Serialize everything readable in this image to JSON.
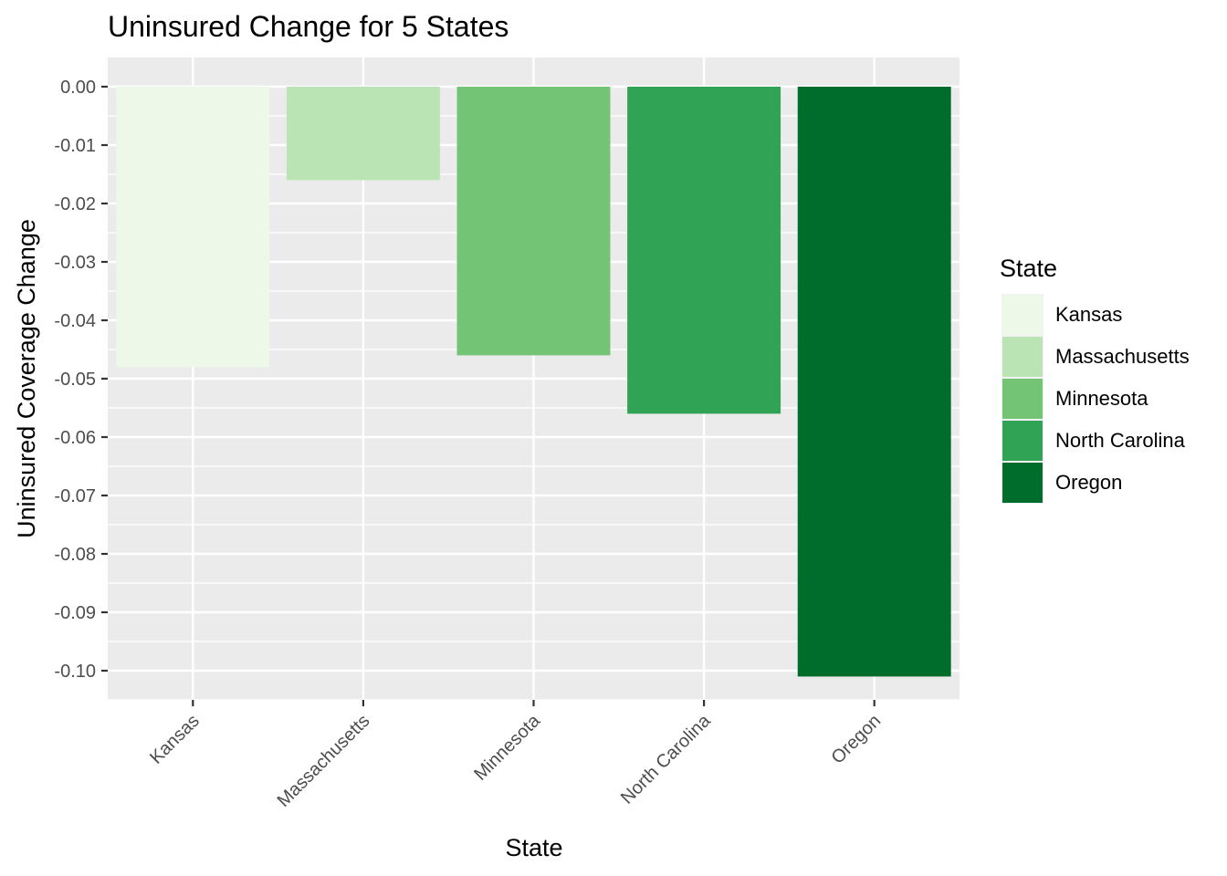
{
  "chart_data": {
    "type": "bar",
    "title": "Uninsured Change for 5 States",
    "xlabel": "State",
    "ylabel": "Uninsured Coverage Change",
    "categories": [
      "Kansas",
      "Massachusetts",
      "Minnesota",
      "North Carolina",
      "Oregon"
    ],
    "values": [
      -0.048,
      -0.016,
      -0.046,
      -0.056,
      -0.101
    ],
    "colors": [
      "#EDF8E9",
      "#BAE4B3",
      "#74C476",
      "#31A354",
      "#006D2C"
    ],
    "ylim": [
      -0.105,
      0.005
    ],
    "yticks": [
      0.0,
      -0.01,
      -0.02,
      -0.03,
      -0.04,
      -0.05,
      -0.06,
      -0.07,
      -0.08,
      -0.09,
      -0.1
    ],
    "ytick_labels": [
      "0.00",
      "-0.01",
      "-0.02",
      "-0.03",
      "-0.04",
      "-0.05",
      "-0.06",
      "-0.07",
      "-0.08",
      "-0.09",
      "-0.10"
    ],
    "grid": true,
    "legend": {
      "title": "State",
      "position": "right",
      "entries": [
        "Kansas",
        "Massachusetts",
        "Minnesota",
        "North Carolina",
        "Oregon"
      ]
    }
  }
}
